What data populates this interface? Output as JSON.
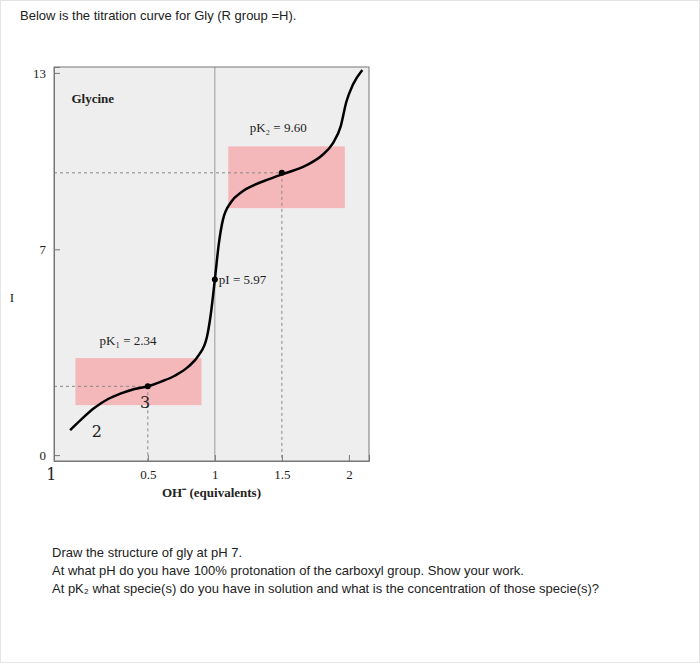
{
  "chart_data": {
    "type": "line",
    "title": "Below is the titration curve for Gly (R group =H).",
    "xlabel": "OH⁻ (equivalents)",
    "ylabel": "I",
    "x": [
      -0.08,
      0.0,
      0.1,
      0.2,
      0.3,
      0.4,
      0.5,
      0.6,
      0.7,
      0.8,
      0.88,
      0.94,
      0.97,
      1.0,
      1.03,
      1.06,
      1.12,
      1.2,
      1.3,
      1.4,
      1.5,
      1.6,
      1.7,
      1.8,
      1.88,
      1.94,
      1.98,
      2.03,
      2.1
    ],
    "values": [
      0.85,
      1.2,
      1.6,
      1.9,
      2.1,
      2.25,
      2.34,
      2.5,
      2.7,
      3.0,
      3.4,
      4.0,
      4.8,
      5.97,
      7.2,
      8.0,
      8.6,
      8.95,
      9.2,
      9.38,
      9.55,
      9.7,
      9.9,
      10.2,
      10.6,
      11.2,
      12.0,
      12.6,
      13.1
    ],
    "color": "#000000",
    "xlim": [
      -0.2,
      2.15
    ],
    "ylim": [
      -0.2,
      13.2
    ],
    "xticks": [
      0.5,
      1,
      1.5,
      2
    ],
    "yticks": [
      0,
      7,
      13
    ],
    "bands": [
      {
        "x": [
          -0.04,
          0.9
        ],
        "y": [
          1.7,
          3.3
        ],
        "color": "#f5b8ba"
      },
      {
        "x": [
          1.1,
          1.97
        ],
        "y": [
          8.4,
          10.5
        ],
        "color": "#f5b8ba"
      }
    ],
    "markers": [
      {
        "x": 0.5,
        "y": 2.34
      },
      {
        "x": 1.0,
        "y": 5.97
      },
      {
        "x": 1.5,
        "y": 9.6
      }
    ],
    "annotations": [
      {
        "text": "Glycine",
        "x": -0.07,
        "y": 11.97
      },
      {
        "text": "pK₁ = 2.34",
        "x": 0.14,
        "y": 3.74
      },
      {
        "text": "pK₂ = 9.60",
        "x": 1.26,
        "y": 10.99
      },
      {
        "text": "pI = 5.97",
        "x": 1.03,
        "y": 5.82
      },
      {
        "text": "1",
        "x": -0.22,
        "y": -0.85
      },
      {
        "text": "2",
        "x": 0.12,
        "y": 0.6
      },
      {
        "text": "3",
        "x": 0.48,
        "y": 1.6
      }
    ]
  },
  "questions": [
    "Draw the structure of gly at pH 7.",
    "At what pH do you have 100% protonation of the carboxyl group. Show your work.",
    "At pK₂ what specie(s) do you have in solution and what is the concentration of those specie(s)?"
  ]
}
